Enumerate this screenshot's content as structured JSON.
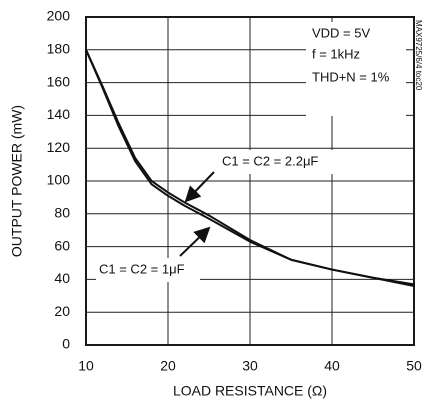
{
  "chart_data": {
    "type": "line",
    "x_label": "LOAD RESISTANCE (Ω)",
    "y_label": "OUTPUT POWER (mW)",
    "x": [
      10,
      12,
      14,
      16,
      18,
      20,
      22,
      25,
      30,
      35,
      40,
      45,
      50
    ],
    "series": [
      {
        "name": "C1 = C2 = 2.2μF",
        "color": "#111111",
        "values": [
          180,
          158,
          135,
          114,
          100,
          93,
          87,
          79,
          64,
          52,
          46,
          41,
          37
        ]
      },
      {
        "name": "C1 = C2 = 1μF",
        "color": "#111111",
        "values": [
          180,
          157,
          133,
          112,
          98,
          91,
          85,
          77,
          63,
          52,
          46,
          41,
          36
        ]
      }
    ],
    "annotations": [
      "VDD = 5V",
      "f = 1kHz",
      "THD+N = 1%"
    ],
    "side_note": "MAX9725/6/4 toc20",
    "xlim": [
      10,
      50
    ],
    "xticks": [
      10,
      20,
      30,
      40,
      50
    ],
    "ylim": [
      0,
      200
    ],
    "yticks": [
      0,
      20,
      40,
      60,
      80,
      100,
      120,
      140,
      160,
      180,
      200
    ],
    "grid": true
  }
}
